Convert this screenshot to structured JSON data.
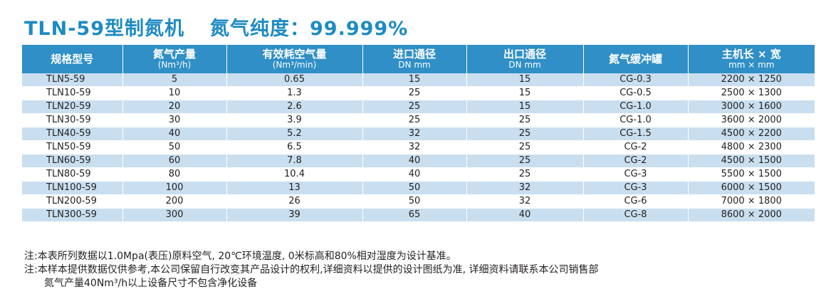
{
  "title": {
    "model": "TLN-59型制氮机",
    "purity": "氮气纯度：99.999%"
  },
  "table": {
    "headers": [
      {
        "main": "规格型号",
        "sub": ""
      },
      {
        "main": "氮气产量",
        "sub": "(Nm³/h)"
      },
      {
        "main": "有效耗空气量",
        "sub": "(Nm³/min)"
      },
      {
        "main": "进口通径",
        "sub": "DN mm"
      },
      {
        "main": "出口通径",
        "sub": "DN mm"
      },
      {
        "main": "氮气缓冲罐",
        "sub": ""
      },
      {
        "main": "主机长 × 宽",
        "sub": "mm × mm"
      }
    ],
    "rows": [
      [
        "TLN5-59",
        "5",
        "0.65",
        "15",
        "15",
        "CG-0.3",
        "2200 × 1250"
      ],
      [
        "TLN10-59",
        "10",
        "1.3",
        "25",
        "15",
        "CG-0.5",
        "2500 × 1300"
      ],
      [
        "TLN20-59",
        "20",
        "2.6",
        "25",
        "15",
        "CG-1.0",
        "3000 × 1600"
      ],
      [
        "TLN30-59",
        "30",
        "3.9",
        "25",
        "25",
        "CG-1.0",
        "3600 × 2000"
      ],
      [
        "TLN40-59",
        "40",
        "5.2",
        "32",
        "25",
        "CG-1.5",
        "4500 × 2200"
      ],
      [
        "TLN50-59",
        "50",
        "6.5",
        "32",
        "25",
        "CG-2",
        "4800 × 2300"
      ],
      [
        "TLN60-59",
        "60",
        "7.8",
        "40",
        "25",
        "CG-2",
        "4500 × 1500"
      ],
      [
        "TLN80-59",
        "80",
        "10.4",
        "40",
        "25",
        "CG-3",
        "5500 × 1500"
      ],
      [
        "TLN100-59",
        "100",
        "13",
        "50",
        "32",
        "CG-3",
        "6000 × 1500"
      ],
      [
        "TLN200-59",
        "200",
        "26",
        "50",
        "32",
        "CG-6",
        "7000 × 1800"
      ],
      [
        "TLN300-59",
        "300",
        "39",
        "65",
        "40",
        "CG-8",
        "8600 × 2000"
      ]
    ]
  },
  "notes": [
    "注:本表所列数据以1.0Mpa(表压)原料空气, 20℃环境温度, 0米标高和80%相对湿度为设计基准。",
    "注:本样本提供数据仅供参考,本公司保留自行改变其产品设计的权利,详细资料以提供的设计图纸为准, 详细资料请联系本公司销售部",
    "氮气产量40Nm³/h以上设备尺寸不包含净化设备"
  ],
  "colors": {
    "title": "#1e8bc3",
    "header_bg": "#2f8fc6",
    "row_stripe": "#c9dff0"
  }
}
